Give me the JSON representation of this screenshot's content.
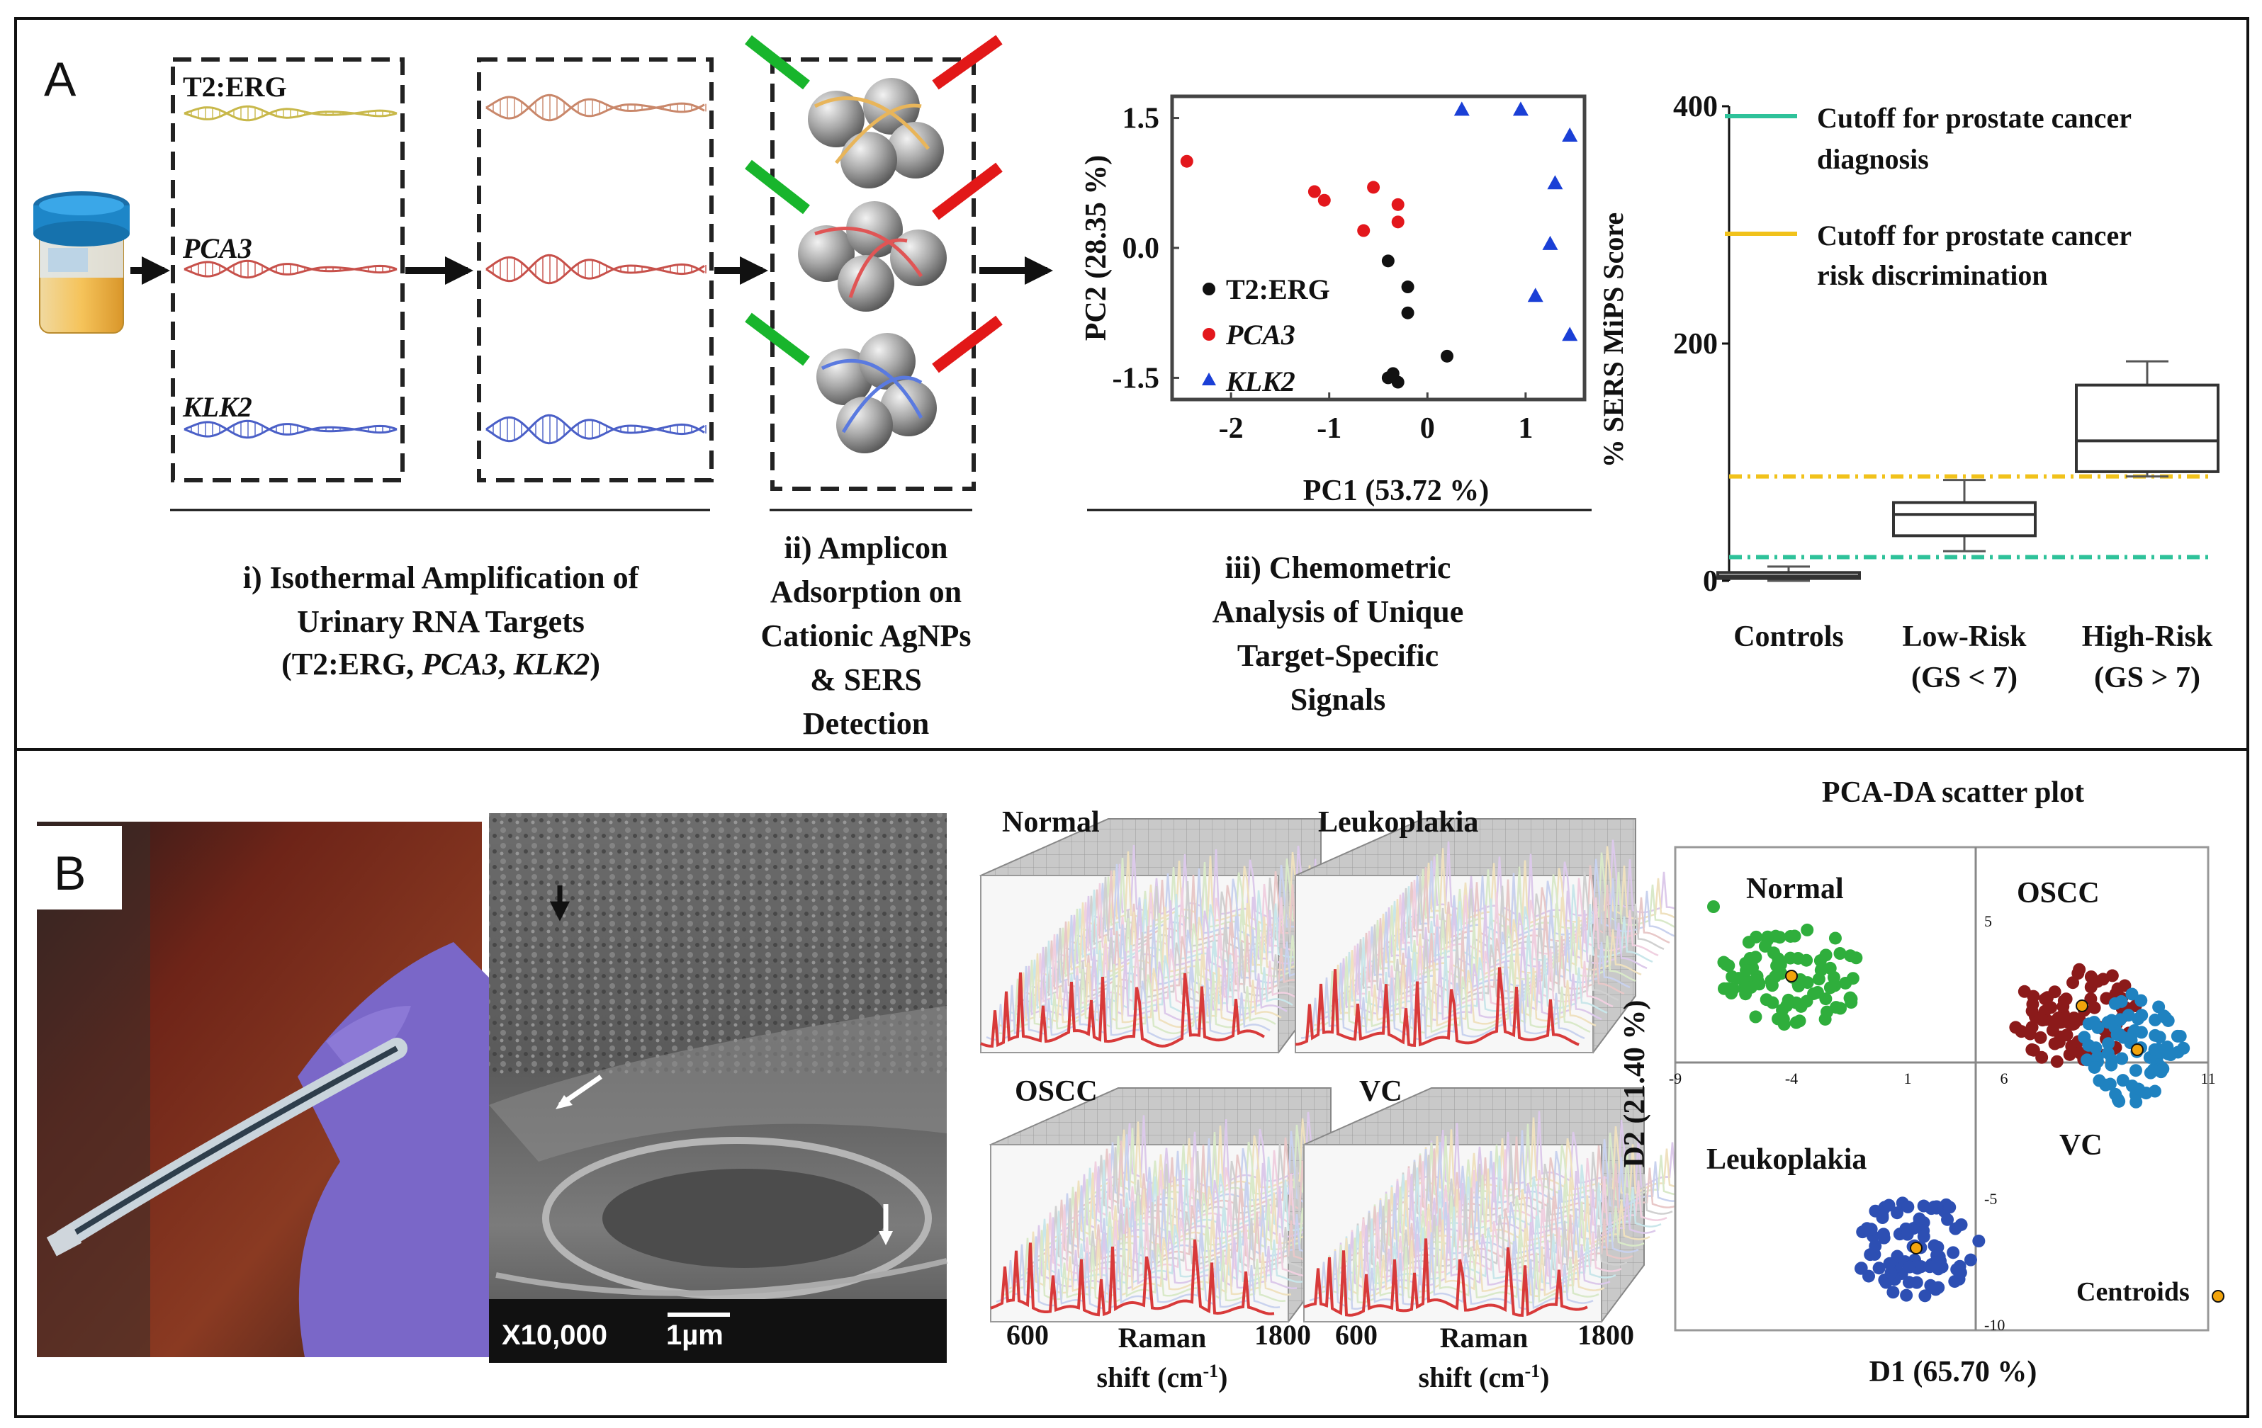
{
  "panel_a": {
    "label": "A",
    "amplicons": {
      "t2erg": "T2:ERG",
      "pca3": "PCA3",
      "klk2": "KLK2"
    },
    "steps": {
      "step1": [
        "i) Isothermal Amplification of",
        "Urinary RNA Targets"
      ],
      "step1_paren_open": "(T2:ERG, ",
      "step1_pca3": "PCA3",
      "step1_comma": ", ",
      "step1_klk2": "KLK2",
      "step1_paren_close": ")",
      "step2": [
        "ii) Amplicon",
        "Adsorption on",
        "Cationic AgNPs",
        "& SERS",
        "Detection"
      ],
      "step3": [
        "iii) Chemometric",
        "Analysis of Unique",
        "Target-Specific",
        "Signals"
      ]
    },
    "pca_legend": {
      "t2erg": "T2:ERG",
      "pca3": "PCA3",
      "klk2": "KLK2"
    },
    "cutoff_legend": {
      "diag": [
        "Cutoff for prostate cancer",
        "diagnosis"
      ],
      "risk": [
        "Cutoff for prostate cancer",
        "risk discrimination"
      ]
    },
    "colors": {
      "diag_cutoff": "#2ec29a",
      "risk_cutoff": "#f1c21b",
      "t2erg": "#111111",
      "pca3": "#e3171c",
      "klk2": "#1a3fd6"
    }
  },
  "panel_b": {
    "label": "B",
    "sem_scale": {
      "magnification": "X10,000",
      "bar": "1µm"
    },
    "spectra": {
      "titles": [
        "Normal",
        "Leukoplakia",
        "OSCC",
        "VC"
      ],
      "xtick_low": "600",
      "xtick_high": "1800",
      "xlabel_line1": "Raman",
      "xlabel_line2": "shift (cm",
      "xlabel_sup": "-1",
      "xlabel_close": ")"
    },
    "pcada": {
      "title": "PCA-DA scatter plot",
      "groups": [
        "Normal",
        "OSCC",
        "Leukoplakia",
        "VC"
      ],
      "centroids": "Centroids",
      "xlabel": "D1 (65.70 %)",
      "ylabel": "D2 (21.40 %)",
      "xticks": [
        "-9",
        "-4",
        "1",
        "6",
        "11"
      ],
      "yticks": [
        "5",
        "-5",
        "-10"
      ],
      "colors": {
        "normal": "#2fae3c",
        "oscc": "#8b1a1a",
        "vc": "#1f82c0",
        "leukoplakia": "#2d4fb3",
        "centroid": "#f2a40c"
      }
    }
  },
  "chart_data": [
    {
      "type": "scatter",
      "title": "",
      "xlabel": "PC1 (53.72 %)",
      "ylabel": "PC2 (28.35 %)",
      "xlim": [
        -2.6,
        1.6
      ],
      "ylim": [
        -1.75,
        1.75
      ],
      "xticks": [
        "-2",
        "-1",
        "0",
        "1"
      ],
      "yticks": [
        "1.5",
        "0.0",
        "-1.5"
      ],
      "series": [
        {
          "name": "T2:ERG",
          "marker": "circle",
          "color": "#111111",
          "points": [
            [
              -0.4,
              -0.15
            ],
            [
              -0.2,
              -0.45
            ],
            [
              -0.2,
              -0.75
            ],
            [
              0.2,
              -1.25
            ],
            [
              -0.4,
              -1.5
            ],
            [
              -0.3,
              -1.55
            ],
            [
              -0.35,
              -1.45
            ]
          ]
        },
        {
          "name": "PCA3",
          "marker": "circle",
          "color": "#e3171c",
          "points": [
            [
              -2.45,
              1.0
            ],
            [
              -1.15,
              0.65
            ],
            [
              -1.05,
              0.55
            ],
            [
              -0.55,
              0.7
            ],
            [
              -0.3,
              0.5
            ],
            [
              -0.65,
              0.2
            ],
            [
              -0.3,
              0.3
            ]
          ]
        },
        {
          "name": "KLK2",
          "marker": "triangle",
          "color": "#1a3fd6",
          "points": [
            [
              0.35,
              1.6
            ],
            [
              0.95,
              1.6
            ],
            [
              1.45,
              1.3
            ],
            [
              1.3,
              0.75
            ],
            [
              1.25,
              0.05
            ],
            [
              1.1,
              -0.55
            ],
            [
              1.45,
              -1.0
            ]
          ]
        }
      ]
    },
    {
      "type": "box",
      "title": "",
      "ylabel": "% SERS MiPS Score",
      "ylim": [
        0,
        400
      ],
      "yticks": [
        "0",
        "200",
        "400"
      ],
      "categories": [
        [
          "Controls"
        ],
        [
          "Low-Risk",
          "(GS < 7)"
        ],
        [
          "High-Risk",
          "(GS > 7)"
        ]
      ],
      "boxes": [
        {
          "min": 0,
          "q1": 2,
          "median": 4,
          "q3": 7,
          "max": 12
        },
        {
          "min": 25,
          "q1": 38,
          "median": 56,
          "q3": 66,
          "max": 85
        },
        {
          "min": 88,
          "q1": 92,
          "median": 118,
          "q3": 165,
          "max": 185
        }
      ],
      "lines": [
        {
          "name": "Cutoff for prostate cancer diagnosis",
          "y": 20,
          "color": "#2ec29a"
        },
        {
          "name": "Cutoff for prostate cancer risk discrimination",
          "y": 88,
          "color": "#f1c21b"
        }
      ]
    }
  ]
}
